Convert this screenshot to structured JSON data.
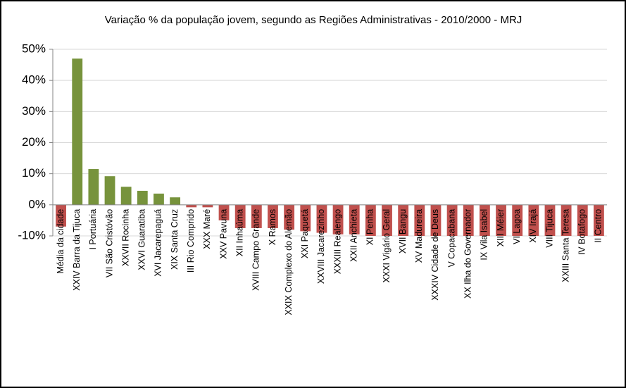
{
  "chart_data": {
    "type": "bar",
    "title": "Variação % da população jovem, segundo as Regiões Administrativas - 2010/2000 - MRJ",
    "categories": [
      "Média da cidade",
      "XXIV Barra da Tijuca",
      "I Portuária",
      "VII São Cristóvão",
      "XXVII Rocinha",
      "XXVI Guaratiba",
      "XVI Jacarepaguá",
      "XIX Santa Cruz",
      "III Rio Comprido",
      "XXX Maré",
      "XXV Pavuna",
      "XII Inhaúma",
      "XVIII Campo Grande",
      "X Ramos",
      "XXIX Complexo do Alemão",
      "XXI Paquetá",
      "XXVIII Jacarezinho",
      "XXXIII Realengo",
      "XXII Anchieta",
      "XI Penha",
      "XXXI Vigário Geral",
      "XVII Bangu",
      "XV Madureira",
      "XXXIV Cidade de Deus",
      "V Copacabana",
      "XX Ilha do Governador",
      "IX Vila Isabel",
      "XIII Méier",
      "VI Lagoa",
      "XIV Irajá",
      "VIII Tijuca",
      "XXIII Santa Teresa",
      "IV Botafogo",
      "II Centro"
    ],
    "values": [
      -7,
      47,
      11.5,
      9.2,
      5.8,
      4.5,
      3.6,
      2.4,
      -0.8,
      -0.8,
      -5,
      -7.5,
      -7.5,
      -7.5,
      -8,
      -8.5,
      -9,
      -9.5,
      -9.5,
      -10,
      -10,
      -10,
      -10,
      -10,
      -10,
      -10,
      -10,
      -10,
      -10,
      -10,
      -10,
      -10,
      -10,
      -10
    ],
    "positive_color": "#77933c",
    "negative_color": "#c0504d",
    "ylim": [
      -10,
      50
    ],
    "yticks": [
      {
        "value": -10,
        "label": "-10%"
      },
      {
        "value": 0,
        "label": "0%"
      },
      {
        "value": 10,
        "label": "10%"
      },
      {
        "value": 20,
        "label": "20%"
      },
      {
        "value": 30,
        "label": "30%"
      },
      {
        "value": 40,
        "label": "40%"
      },
      {
        "value": 50,
        "label": "50%"
      }
    ],
    "grid": true
  }
}
